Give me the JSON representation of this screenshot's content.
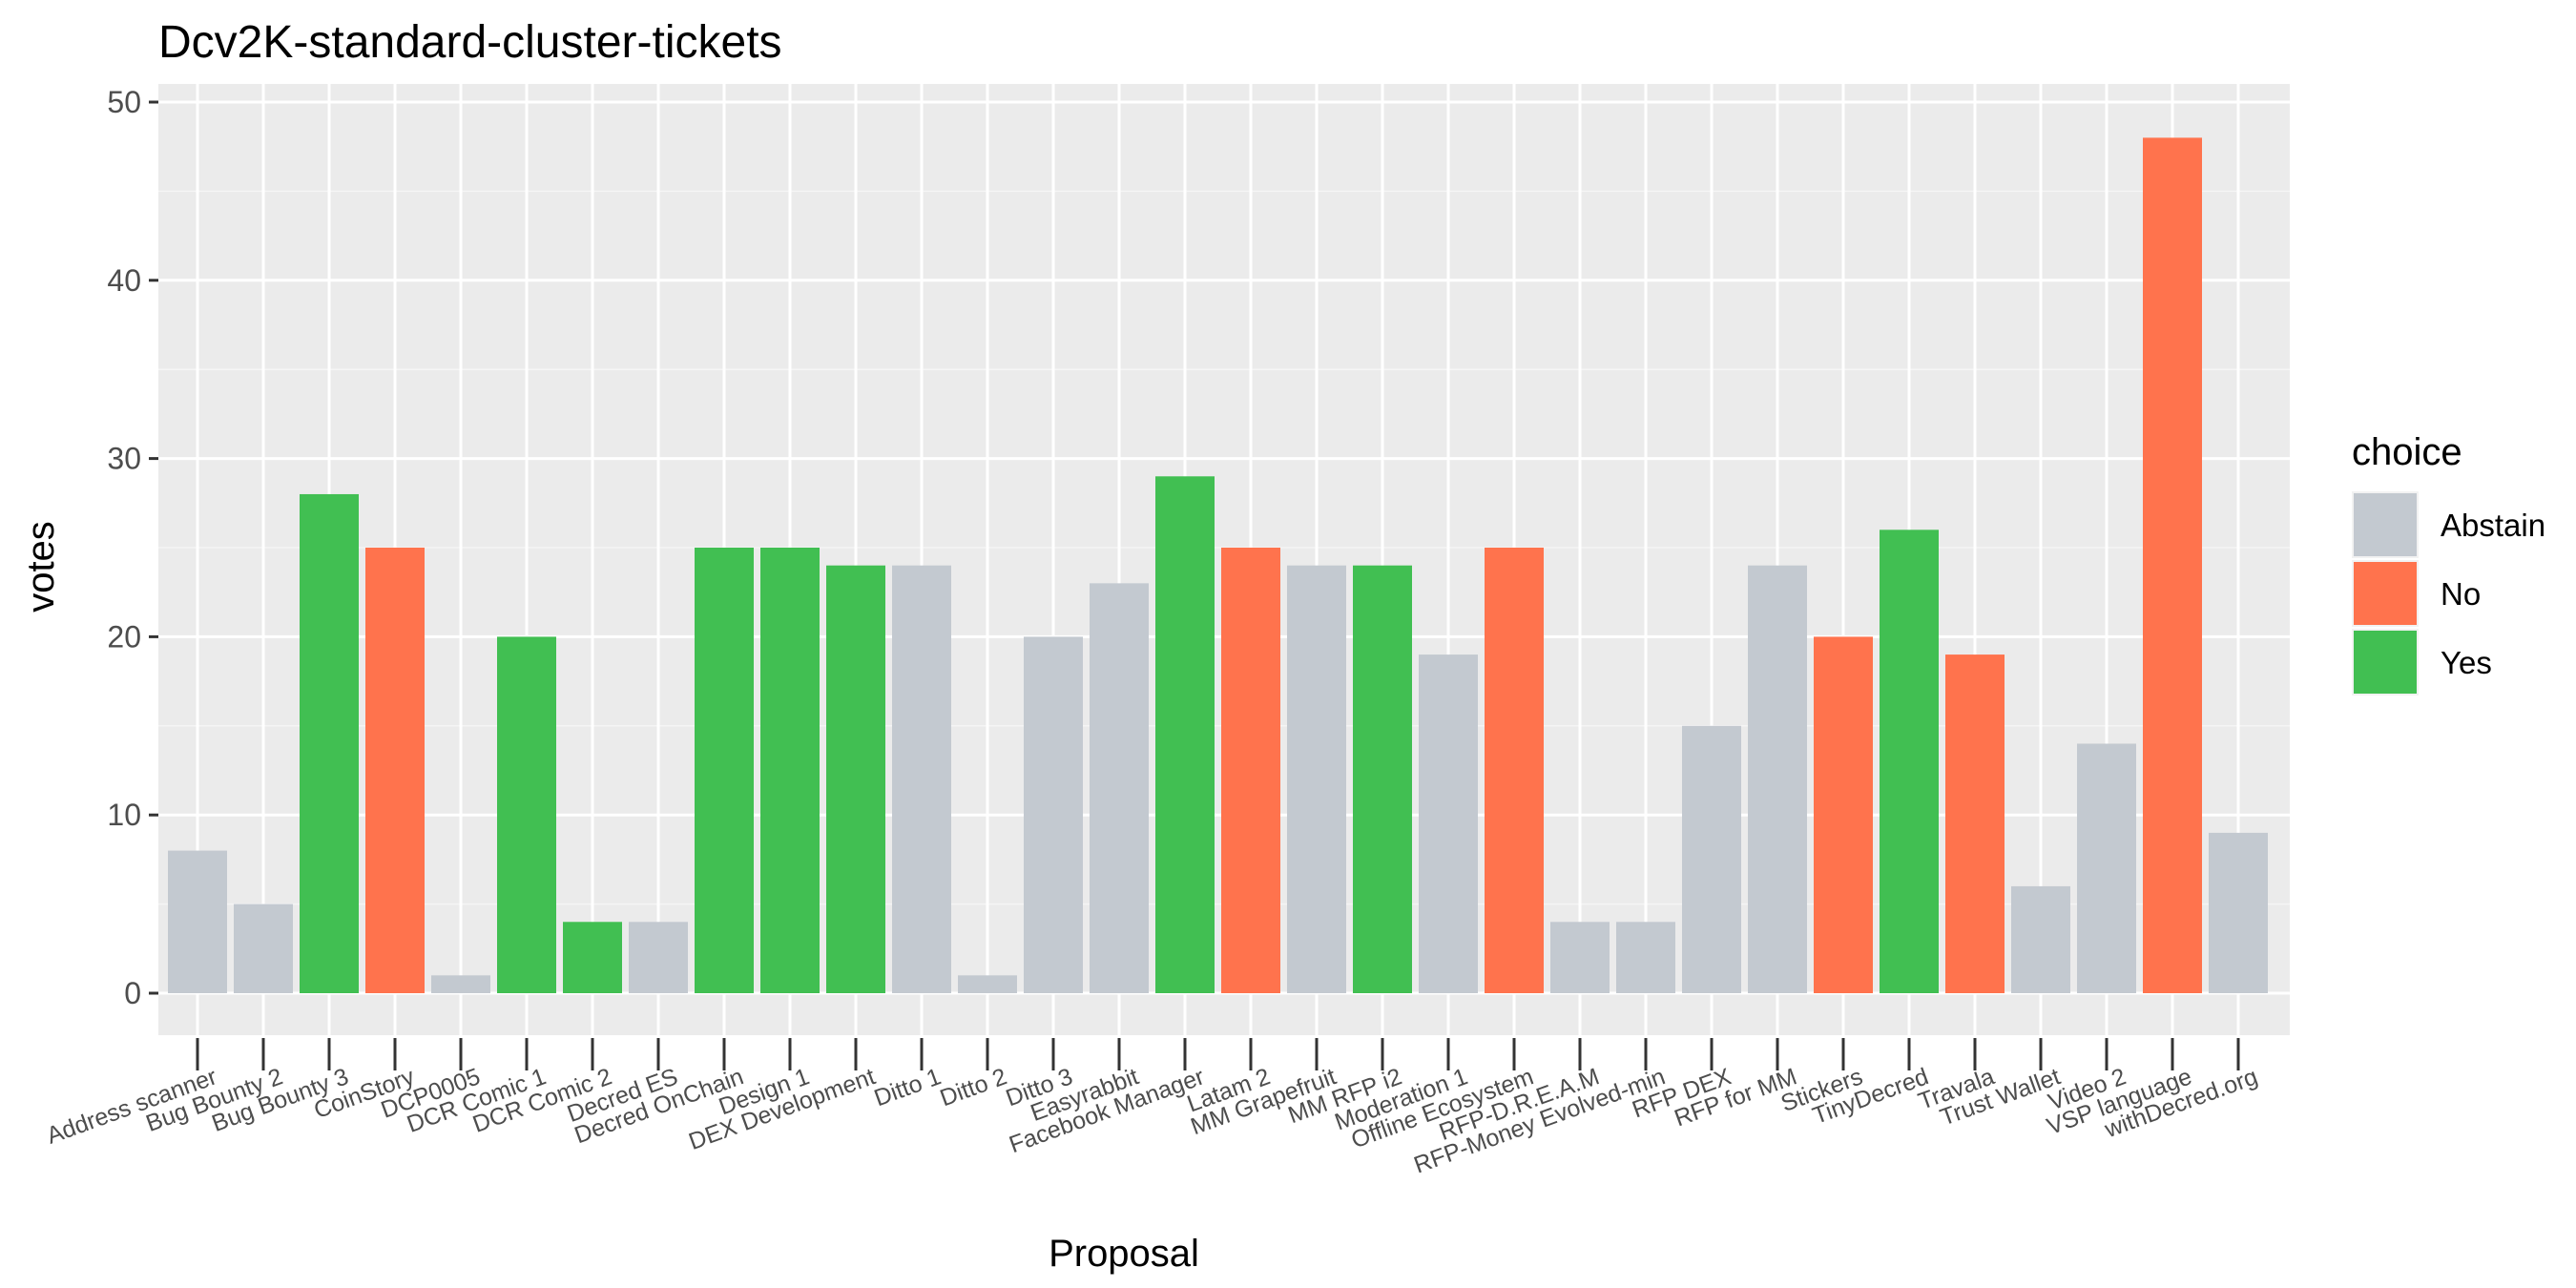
{
  "chart_data": {
    "type": "bar",
    "title": "Dcv2K-standard-cluster-tickets",
    "xlabel": "Proposal",
    "ylabel": "votes",
    "ylim": [
      0,
      50
    ],
    "yticks": [
      0,
      10,
      20,
      30,
      40,
      50
    ],
    "grid": true,
    "legend": {
      "title": "choice",
      "placement": "right",
      "entries": [
        {
          "label": "Abstain",
          "color": "#C3C9D0"
        },
        {
          "label": "No",
          "color": "#FF734D"
        },
        {
          "label": "Yes",
          "color": "#41BF52"
        }
      ]
    },
    "categories": [
      "Address scanner",
      "Bug Bounty 2",
      "Bug Bounty 3",
      "CoinStory",
      "DCP0005",
      "DCR Comic 1",
      "DCR Comic 2",
      "Decred ES",
      "Decred OnChain",
      "Design 1",
      "DEX Development",
      "Ditto 1",
      "Ditto 2",
      "Ditto 3",
      "Easyrabbit",
      "Facebook Manager",
      "Latam 2",
      "MM Grapefruit",
      "MM RFP i2",
      "Moderation 1",
      "Offline Ecosystem",
      "RFP-D.R.E.A.M",
      "RFP-Money Evolved-min",
      "RFP DEX",
      "RFP for MM",
      "Stickers",
      "TinyDecred",
      "Travala",
      "Trust Wallet",
      "Video 2",
      "VSP language",
      "withDecred.org"
    ],
    "values": [
      8,
      5,
      28,
      25,
      1,
      20,
      4,
      4,
      25,
      25,
      24,
      24,
      1,
      20,
      23,
      29,
      25,
      24,
      24,
      19,
      25,
      4,
      4,
      15,
      24,
      20,
      26,
      19,
      6,
      14,
      48,
      9
    ],
    "choices": [
      "Abstain",
      "Abstain",
      "Yes",
      "No",
      "Abstain",
      "Yes",
      "Yes",
      "Abstain",
      "Yes",
      "Yes",
      "Yes",
      "Abstain",
      "Abstain",
      "Abstain",
      "Abstain",
      "Yes",
      "No",
      "Abstain",
      "Yes",
      "Abstain",
      "No",
      "Abstain",
      "Abstain",
      "Abstain",
      "Abstain",
      "No",
      "Yes",
      "No",
      "Abstain",
      "Abstain",
      "No",
      "Abstain"
    ]
  }
}
